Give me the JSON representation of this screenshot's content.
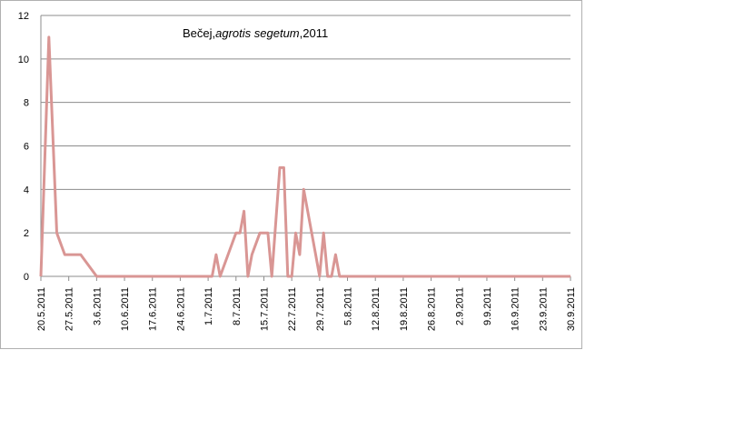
{
  "chart_data": {
    "type": "line",
    "title_prefix": "Bečej,",
    "title_italic": "agrotis segetum",
    "title_suffix": ",2011",
    "xlabel": "",
    "ylabel": "",
    "ylim": [
      0,
      12
    ],
    "y_ticks": [
      0,
      2,
      4,
      6,
      8,
      10,
      12
    ],
    "grid": "horizontal",
    "legend": "none",
    "line_color": "#d99694",
    "x_range": [
      "20.5.2011",
      "30.9.2011"
    ],
    "x_tick_labels": [
      "20.5.2011",
      "27.5.2011",
      "3.6.2011",
      "10.6.2011",
      "17.6.2011",
      "24.6.2011",
      "1.7.2011",
      "8.7.2011",
      "15.7.2011",
      "22.7.2011",
      "29.7.2011",
      "5.8.2011",
      "12.8.2011",
      "19.8.2011",
      "26.8.2011",
      "2.9.2011",
      "9.9.2011",
      "16.9.2011",
      "23.9.2011",
      "30.9.2011"
    ],
    "series": [
      {
        "x": [
          "20.5.2011",
          "22.5.2011",
          "24.5.2011",
          "26.5.2011",
          "30.5.2011",
          "3.6.2011",
          "30.6.2011",
          "2.7.2011",
          "3.7.2011",
          "4.7.2011",
          "8.7.2011",
          "9.7.2011",
          "10.7.2011",
          "11.7.2011",
          "12.7.2011",
          "14.7.2011",
          "16.7.2011",
          "17.7.2011",
          "19.7.2011",
          "20.7.2011",
          "21.7.2011",
          "22.7.2011",
          "23.7.2011",
          "24.7.2011",
          "25.7.2011",
          "28.7.2011",
          "29.7.2011",
          "30.7.2011",
          "31.7.2011",
          "1.8.2011",
          "2.8.2011",
          "3.8.2011",
          "12.8.2011",
          "14.8.2011",
          "16.8.2011",
          "17.8.2011",
          "20.8.2011",
          "30.9.2011"
        ],
        "y": [
          0,
          11,
          2,
          1,
          1,
          0,
          0,
          0,
          1,
          0,
          2,
          2,
          3,
          0,
          1,
          2,
          2,
          0,
          5,
          5,
          0,
          0,
          2,
          1,
          4,
          1,
          0,
          2,
          0,
          0,
          1,
          0,
          0,
          0,
          0,
          0,
          0,
          0
        ]
      }
    ]
  }
}
